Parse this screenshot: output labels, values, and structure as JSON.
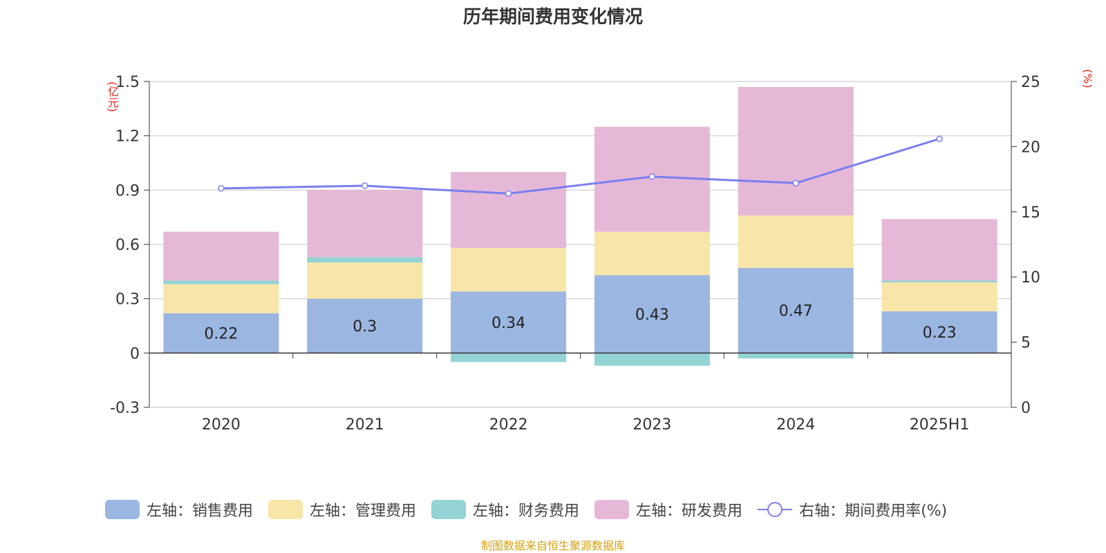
{
  "title": "历年期间费用变化情况",
  "source": "制图数据来自恒生聚源数据库",
  "chart_data": {
    "type": "bar",
    "stacked": true,
    "title": "历年期间费用变化情况",
    "categories": [
      "2020",
      "2021",
      "2022",
      "2023",
      "2024",
      "2025H1"
    ],
    "left_axis": {
      "unit": "(亿元)",
      "ylim": [
        -0.3,
        1.5
      ],
      "ticks": [
        "-0.3",
        "0",
        "0.3",
        "0.6",
        "0.9",
        "1.2",
        "1.5"
      ]
    },
    "right_axis": {
      "unit": "(%)",
      "ylim": [
        0,
        25
      ],
      "ticks": [
        "0",
        "5",
        "10",
        "15",
        "20",
        "25"
      ]
    },
    "grid": true,
    "legend_position": "bottom",
    "series": [
      {
        "name": "左轴：销售费用",
        "color": "#9bb6e1",
        "axis": "left",
        "values": [
          0.22,
          0.3,
          0.34,
          0.43,
          0.47,
          0.23
        ],
        "labels": [
          "0.22",
          "0.3",
          "0.34",
          "0.43",
          "0.47",
          "0.23"
        ]
      },
      {
        "name": "左轴：管理费用",
        "color": "#f7e6a8",
        "axis": "left",
        "values": [
          0.16,
          0.2,
          0.24,
          0.24,
          0.29,
          0.16
        ]
      },
      {
        "name": "左轴：财务费用",
        "color": "#94d3d4",
        "axis": "left",
        "values": [
          0.02,
          0.03,
          -0.05,
          -0.07,
          -0.03,
          0.01
        ]
      },
      {
        "name": "左轴：研发费用",
        "color": "#e6b8d8",
        "axis": "left",
        "values": [
          0.27,
          0.37,
          0.42,
          0.58,
          0.71,
          0.34
        ]
      },
      {
        "name": "右轴：期间费用率(%)",
        "color": "#7a7ef0",
        "axis": "right",
        "type": "line",
        "values": [
          16.8,
          17.0,
          16.4,
          17.7,
          17.2,
          20.6
        ]
      }
    ]
  }
}
